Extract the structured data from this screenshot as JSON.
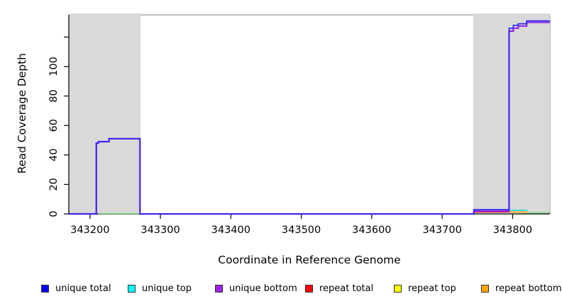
{
  "chart_data": {
    "type": "line",
    "xlabel": "Coordinate in Reference Genome",
    "ylabel": "Read Coverage Depth",
    "xlim": [
      343170,
      343853
    ],
    "ylim": [
      0,
      136
    ],
    "grid": false,
    "legend_position": "bottom",
    "x_ticks": [
      {
        "v": 343200,
        "label": "343200"
      },
      {
        "v": 343300,
        "label": "343300"
      },
      {
        "v": 343400,
        "label": "343400"
      },
      {
        "v": 343500,
        "label": "343500"
      },
      {
        "v": 343600,
        "label": "343600"
      },
      {
        "v": 343700,
        "label": "343700"
      },
      {
        "v": 343800,
        "label": "343800"
      }
    ],
    "y_ticks": [
      {
        "v": 0,
        "label": "0"
      },
      {
        "v": 20,
        "label": "20"
      },
      {
        "v": 40,
        "label": "40"
      },
      {
        "v": 60,
        "label": "60"
      },
      {
        "v": 80,
        "label": "80"
      },
      {
        "v": 100,
        "label": "100"
      },
      {
        "v": 120,
        "label": ""
      }
    ],
    "shaded_regions": [
      {
        "x0": 343170,
        "x1": 343272,
        "color": "#d9d9d9"
      },
      {
        "x0": 343744,
        "x1": 343853,
        "color": "#d9d9d9"
      }
    ],
    "series": [
      {
        "name": "unique total",
        "color": "#2b22f5",
        "width": 1.6,
        "segments": [
          [
            343170,
            343209,
            0
          ],
          [
            343209,
            343212,
            48
          ],
          [
            343212,
            343227,
            49
          ],
          [
            343227,
            343271,
            51
          ],
          [
            343271,
            343745,
            0
          ],
          [
            343745,
            343795,
            3
          ],
          [
            343795,
            343801,
            126
          ],
          [
            343801,
            343808,
            128
          ],
          [
            343808,
            343820,
            129
          ],
          [
            343820,
            343853,
            131
          ]
        ]
      },
      {
        "name": "unique top",
        "color": "#00dede",
        "width": 1.5,
        "segments": [
          [
            343795,
            343821,
            2.5
          ]
        ]
      },
      {
        "name": "unique bottom",
        "color": "#8a2be2",
        "width": 2.2,
        "segments": [
          [
            343170,
            343209,
            0
          ],
          [
            343209,
            343212,
            48
          ],
          [
            343212,
            343227,
            49
          ],
          [
            343227,
            343271,
            51
          ],
          [
            343271,
            343745,
            0
          ],
          [
            343745,
            343795,
            2
          ],
          [
            343795,
            343801,
            124
          ],
          [
            343801,
            343808,
            126
          ],
          [
            343808,
            343820,
            127.5
          ],
          [
            343820,
            343853,
            130
          ]
        ]
      },
      {
        "name": "repeat total",
        "color": "#e01030",
        "width": 1.4,
        "segments": [
          [
            343745,
            343795,
            1.3
          ]
        ]
      },
      {
        "name": "repeat top",
        "color": "#ffff00",
        "width": 1.4,
        "segments": []
      },
      {
        "name": "repeat bottom",
        "color": "#ff9e00",
        "width": 1.6,
        "segments": [
          [
            343795,
            343821,
            1.3
          ]
        ]
      }
    ],
    "overlap_artifact": {
      "color": "#7fd87f",
      "width": 1.3,
      "segments": [
        [
          343212,
          343270,
          0.2
        ],
        [
          343821,
          343853,
          0.8
        ]
      ]
    }
  },
  "legend": {
    "items": [
      {
        "label": "unique total",
        "color": "#0000ff"
      },
      {
        "label": "unique top",
        "color": "#00ffff"
      },
      {
        "label": "unique bottom",
        "color": "#a020f0"
      },
      {
        "label": "repeat total",
        "color": "#ff0000"
      },
      {
        "label": "repeat top",
        "color": "#ffff00"
      },
      {
        "label": "repeat bottom",
        "color": "#ffa500"
      }
    ]
  }
}
